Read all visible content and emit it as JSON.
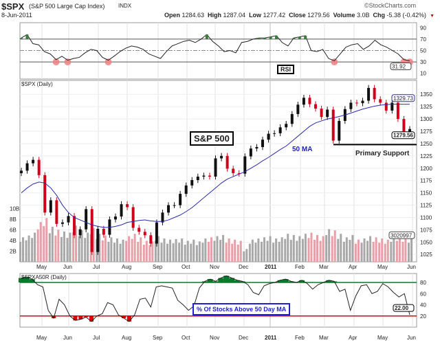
{
  "header": {
    "symbol": "$SPX",
    "name": "(S&P 500 Large Cap Index)",
    "exchange": "INDX",
    "date": "8-Jun-2011",
    "brand": "©StockCharts.com",
    "quote": [
      {
        "k": "Open",
        "v": "1284.63"
      },
      {
        "k": "High",
        "v": "1287.04"
      },
      {
        "k": "Low",
        "v": "1277.42"
      },
      {
        "k": "Close",
        "v": "1279.56"
      },
      {
        "k": "Volume",
        "v": "3.0B"
      },
      {
        "k": "Chg",
        "v": "-5.38 (-0.42%)"
      }
    ]
  },
  "chart_data": [
    {
      "type": "line",
      "title": "RSI",
      "ylim": [
        0,
        100
      ],
      "yticks": [
        10,
        30,
        50,
        70,
        90
      ],
      "ref_lines": [
        30,
        50,
        70
      ],
      "last_label": "31.92",
      "values": [
        72,
        78,
        62,
        60,
        48,
        44,
        34,
        40,
        33,
        36,
        38,
        46,
        52,
        50,
        38,
        33,
        40,
        48,
        54,
        58,
        56,
        52,
        44,
        40,
        36,
        48,
        58,
        62,
        66,
        68,
        64,
        70,
        78,
        66,
        58,
        48,
        50,
        46,
        64,
        66,
        70,
        72,
        72,
        74,
        76,
        64,
        58,
        72,
        74,
        76,
        50,
        48,
        52,
        36,
        32,
        44,
        56,
        60,
        62,
        52,
        58,
        68,
        60,
        56,
        50,
        44,
        34,
        31.92
      ]
    },
    {
      "type": "candlestick",
      "title": "$SPX (Daily)",
      "ylim": [
        1010,
        1380
      ],
      "yticks": [
        1025,
        1050,
        1075,
        1100,
        1125,
        1150,
        1175,
        1200,
        1225,
        1250,
        1275,
        1300,
        1325,
        1350
      ],
      "closes": [
        1195,
        1210,
        1217,
        1186,
        1110,
        1135,
        1087,
        1090,
        1103,
        1064,
        1076,
        1117,
        1030,
        1077,
        1065,
        1096,
        1102,
        1127,
        1121,
        1079,
        1071,
        1064,
        1047,
        1090,
        1110,
        1125,
        1125,
        1148,
        1165,
        1176,
        1183,
        1185,
        1183,
        1220,
        1225,
        1199,
        1190,
        1189,
        1224,
        1240,
        1243,
        1258,
        1270,
        1271,
        1283,
        1290,
        1310,
        1329,
        1343,
        1330,
        1321,
        1304,
        1319,
        1256,
        1296,
        1320,
        1333,
        1332,
        1337,
        1363,
        1340,
        1333,
        1317,
        1333,
        1300,
        1270,
        1279.56
      ],
      "ma50": [
        1150,
        1160,
        1168,
        1172,
        1170,
        1160,
        1145,
        1125,
        1110,
        1100,
        1095,
        1090,
        1085,
        1082,
        1080,
        1080,
        1082,
        1085,
        1090,
        1092,
        1094,
        1095,
        1093,
        1092,
        1092,
        1095,
        1100,
        1105,
        1112,
        1120,
        1130,
        1140,
        1150,
        1160,
        1170,
        1178,
        1183,
        1188,
        1193,
        1200,
        1207,
        1215,
        1222,
        1230,
        1238,
        1245,
        1255,
        1265,
        1275,
        1285,
        1292,
        1296,
        1300,
        1302,
        1305,
        1308,
        1312,
        1316,
        1320,
        1323,
        1326,
        1328,
        1329,
        1330,
        1330,
        1329.73,
        1329.73
      ],
      "ma_label": "1329.73",
      "last_label": "1279.56",
      "volume": {
        "yticks": [
          "10B",
          "8B",
          "6B",
          "4B",
          "2B"
        ],
        "last_label": "3020997",
        "values": [
          4.2,
          4.5,
          5,
          6.8,
          7.5,
          6,
          5.5,
          5.2,
          5,
          6.2,
          5.4,
          5,
          5.8,
          4.8,
          4.5,
          4.2,
          4,
          3.8,
          4.4,
          4.8,
          4.2,
          3.6,
          3.5,
          4.4,
          4,
          3.8,
          3.9,
          4,
          3.6,
          3.8,
          3.5,
          4,
          4.2,
          4.4,
          4.6,
          4,
          3.8,
          3.6,
          2.2,
          3.8,
          4,
          4.2,
          4.4,
          4,
          4.2,
          4.8,
          4.6,
          4.4,
          4.8,
          5,
          4.6,
          4.4,
          5.6,
          5.4,
          4.8,
          4.2,
          4.6,
          3.8,
          4,
          4.4,
          4.2,
          4,
          3.8,
          4.2,
          4.4,
          4.2,
          4
        ]
      }
    },
    {
      "type": "area",
      "title": "$SPXA50R (Daily)",
      "ylim": [
        0,
        96
      ],
      "yticks": [
        20,
        40,
        60,
        80
      ],
      "ref_lines": [
        {
          "v": 80,
          "color": "#0a7a2a"
        },
        {
          "v": 20,
          "color": "#e00000"
        }
      ],
      "last_label": "22.00",
      "values": [
        88,
        90,
        86,
        76,
        72,
        30,
        16,
        50,
        40,
        20,
        12,
        14,
        18,
        10,
        20,
        24,
        44,
        40,
        22,
        16,
        10,
        22,
        50,
        52,
        36,
        72,
        74,
        72,
        70,
        48,
        40,
        30,
        38,
        70,
        82,
        86,
        82,
        88,
        92,
        88,
        84,
        82,
        76,
        62,
        58,
        74,
        78,
        80,
        84,
        86,
        82,
        80,
        84,
        78,
        68,
        76,
        80,
        84,
        82,
        64,
        68,
        30,
        56,
        74,
        76,
        60,
        64,
        78,
        72,
        62,
        54,
        60,
        22
      ]
    },
    {
      "type": "axis",
      "months": [
        "May",
        "Jun",
        "Jul",
        "Aug",
        "Sep",
        "Oct",
        "Nov",
        "Dec",
        "2011",
        "Feb",
        "Mar",
        "Apr",
        "May",
        "Jun"
      ]
    }
  ],
  "annotations": {
    "rsi_box": "RSI",
    "spx_box": "S&P 500",
    "ma_label": "50 MA",
    "support": "Primary Support",
    "breadth_box": "% Of Stocks Above 50 Day MA"
  },
  "colors": {
    "up": "#111111",
    "down": "#d0021b",
    "ma": "#2a2ab0",
    "vol_up": "#a8a8a8",
    "vol_down": "#e8a0a8",
    "rsi_fill_hi": "#3d7a3d",
    "rsi_fill_lo": "#f08080",
    "breadth_hi": "#0a7a2a",
    "breadth_lo": "#e00000"
  }
}
